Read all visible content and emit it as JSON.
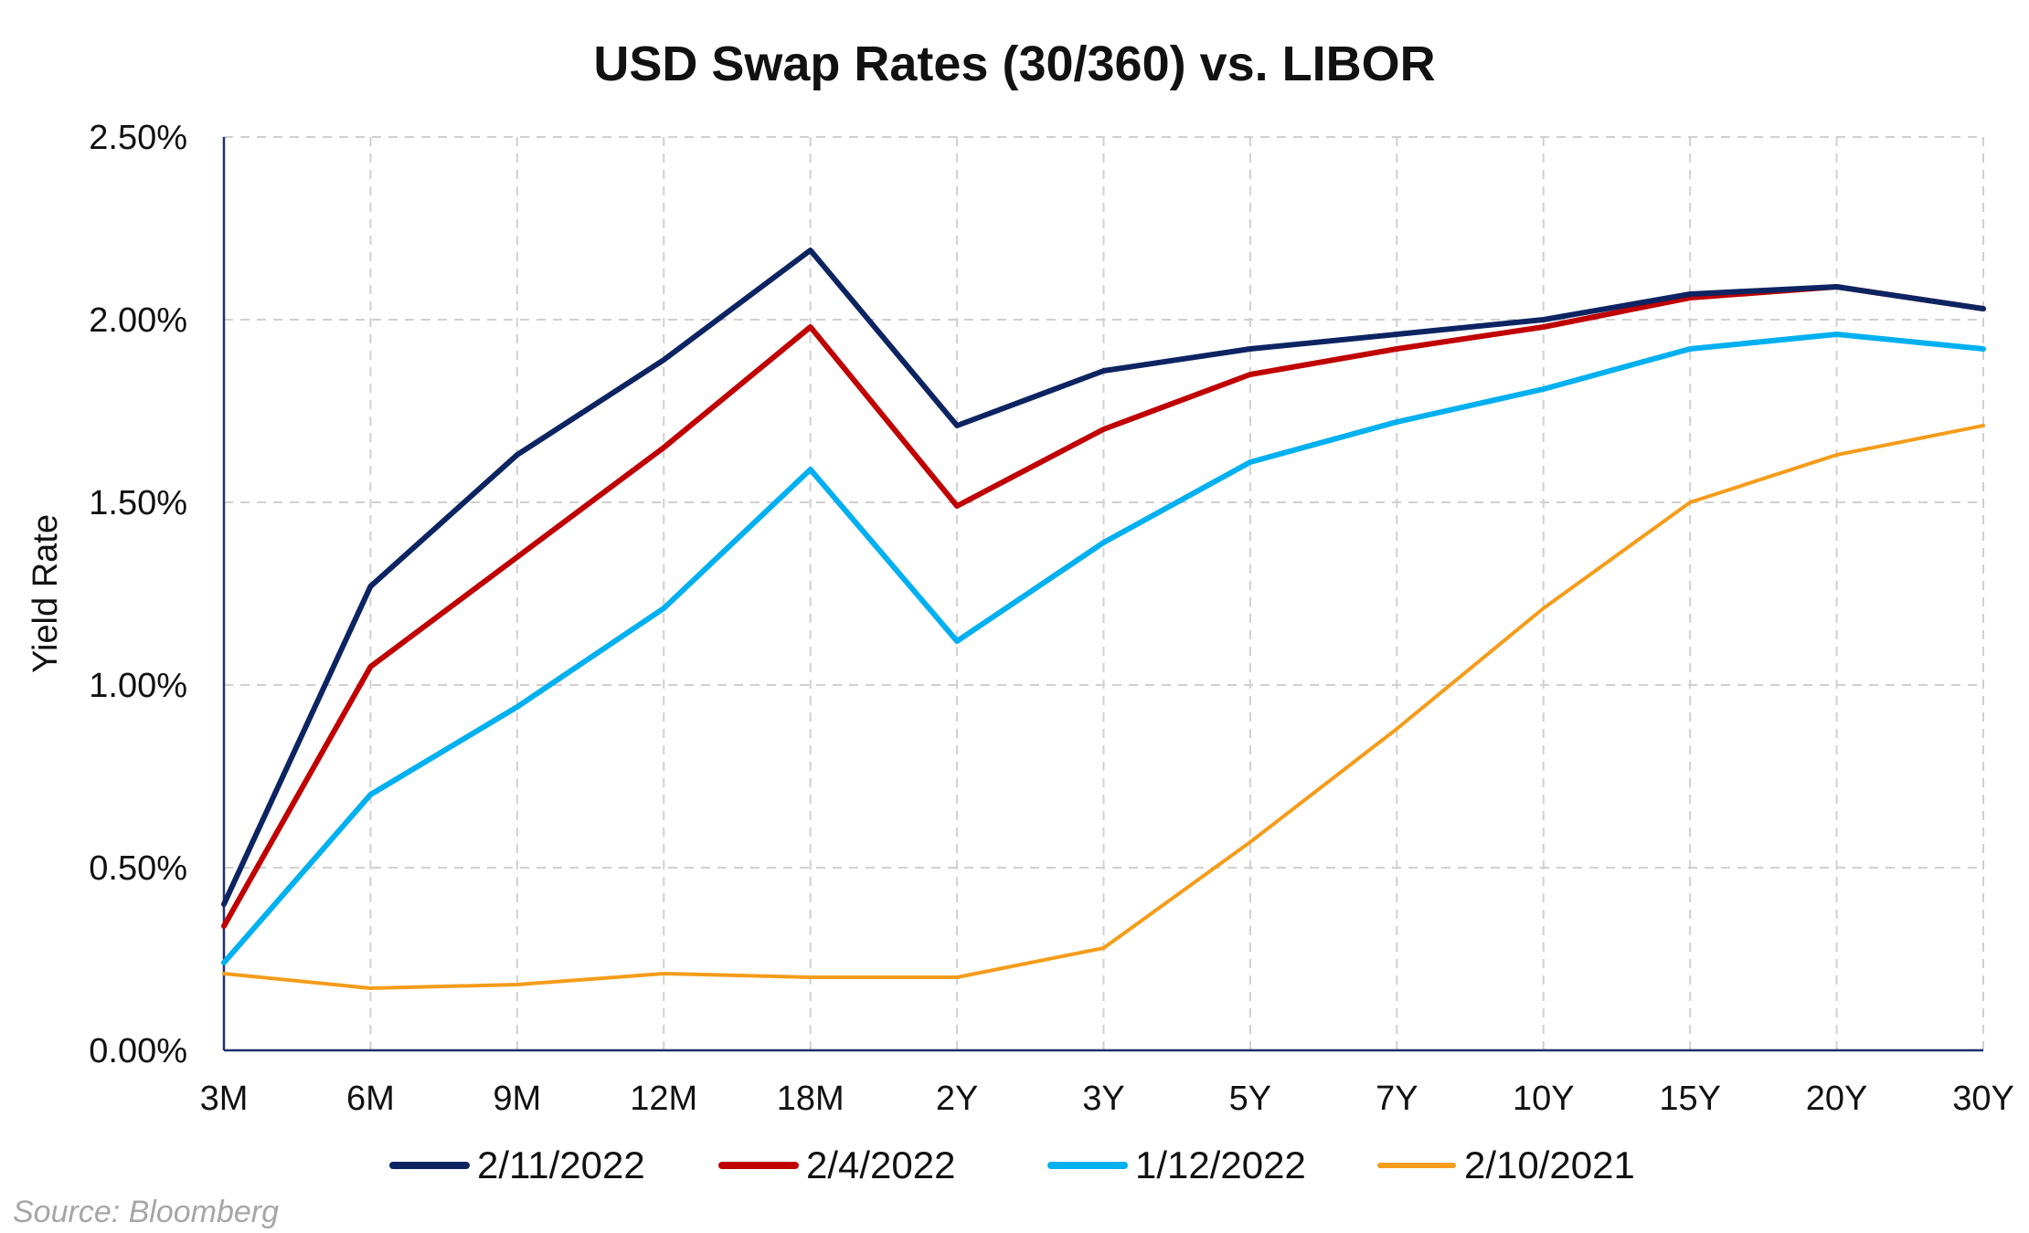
{
  "chart_data": {
    "type": "line",
    "title": "USD Swap Rates (30/360) vs. LIBOR",
    "xlabel": "",
    "ylabel": "Yield Rate",
    "categories": [
      "3M",
      "6M",
      "9M",
      "12M",
      "18M",
      "2Y",
      "3Y",
      "5Y",
      "7Y",
      "10Y",
      "15Y",
      "20Y",
      "30Y"
    ],
    "ylim": [
      0,
      0.025
    ],
    "yticks": [
      {
        "value": 0.0,
        "label": "0.00%"
      },
      {
        "value": 0.005,
        "label": "0.50%"
      },
      {
        "value": 0.01,
        "label": "1.00%"
      },
      {
        "value": 0.015,
        "label": "1.50%"
      },
      {
        "value": 0.02,
        "label": "2.00%"
      },
      {
        "value": 0.025,
        "label": "2.50%"
      }
    ],
    "grid": true,
    "legend_position": "bottom",
    "series": [
      {
        "name": "2/11/2022",
        "color": "#0c2461",
        "width": 6,
        "values": [
          0.004,
          0.0127,
          0.0163,
          0.0189,
          0.0219,
          0.0171,
          0.0186,
          0.0192,
          0.0196,
          0.02,
          0.0207,
          0.0209,
          0.0203
        ]
      },
      {
        "name": "2/4/2022",
        "color": "#c00000",
        "width": 6,
        "values": [
          0.0034,
          0.0105,
          0.0135,
          0.0165,
          0.0198,
          0.0149,
          0.017,
          0.0185,
          0.0192,
          0.0198,
          0.0206,
          0.0209,
          0.0203
        ]
      },
      {
        "name": "1/12/2022",
        "color": "#00b0f0",
        "width": 6,
        "values": [
          0.0024,
          0.007,
          0.0094,
          0.0121,
          0.0159,
          0.0112,
          0.0139,
          0.0161,
          0.0172,
          0.0181,
          0.0192,
          0.0196,
          0.0192
        ]
      },
      {
        "name": "2/10/2021",
        "color": "#f59c1a",
        "width": 4,
        "values": [
          0.0021,
          0.0017,
          0.0018,
          0.0021,
          0.002,
          0.002,
          0.0028,
          0.0057,
          0.0088,
          0.0121,
          0.015,
          0.0163,
          0.0171
        ]
      }
    ]
  },
  "source": "Source: Bloomberg"
}
